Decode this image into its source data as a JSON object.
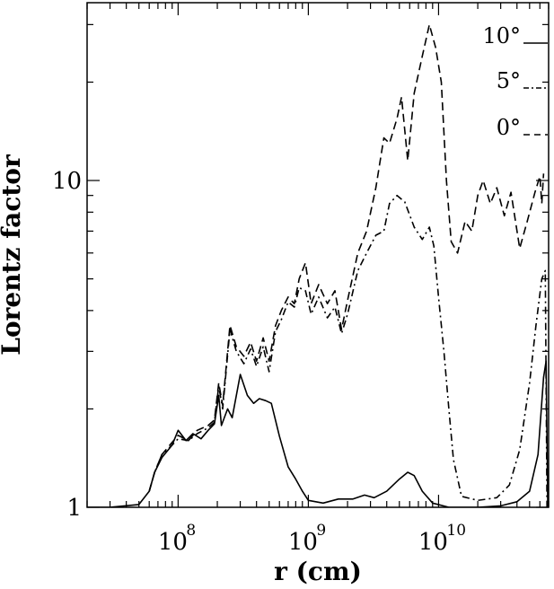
{
  "chart_data": {
    "type": "line",
    "title": "",
    "xlabel": "r (cm)",
    "ylabel": "Lorentz factor",
    "x_scale": "log",
    "y_scale": "log",
    "xlim": [
      20000000,
      70000000000
    ],
    "ylim": [
      1,
      35
    ],
    "x_ticks": [
      {
        "value": 100000000,
        "base": "10",
        "exp": "8"
      },
      {
        "value": 1000000000,
        "base": "10",
        "exp": "9"
      },
      {
        "value": 10000000000,
        "base": "10",
        "exp": "10"
      }
    ],
    "y_ticks": [
      {
        "value": 1,
        "label": "1"
      },
      {
        "value": 10,
        "label": "10"
      }
    ],
    "grid": false,
    "legend_position": "top-right",
    "series": [
      {
        "name": "10°",
        "style": "solid",
        "points": [
          [
            20000000,
            1.0
          ],
          [
            30000000,
            1.0
          ],
          [
            50000000,
            1.02
          ],
          [
            60000000,
            1.12
          ],
          [
            66000000,
            1.28
          ],
          [
            75000000,
            1.42
          ],
          [
            90000000,
            1.55
          ],
          [
            100000000,
            1.72
          ],
          [
            115000000,
            1.6
          ],
          [
            130000000,
            1.68
          ],
          [
            150000000,
            1.62
          ],
          [
            170000000,
            1.72
          ],
          [
            190000000,
            1.8
          ],
          [
            205000000,
            2.2
          ],
          [
            215000000,
            1.78
          ],
          [
            240000000,
            2.0
          ],
          [
            260000000,
            1.88
          ],
          [
            300000000,
            2.55
          ],
          [
            340000000,
            2.2
          ],
          [
            380000000,
            2.08
          ],
          [
            420000000,
            2.15
          ],
          [
            470000000,
            2.12
          ],
          [
            520000000,
            2.08
          ],
          [
            600000000,
            1.65
          ],
          [
            700000000,
            1.33
          ],
          [
            800000000,
            1.22
          ],
          [
            900000000,
            1.12
          ],
          [
            1000000000,
            1.05
          ],
          [
            1300000000,
            1.03
          ],
          [
            1700000000,
            1.06
          ],
          [
            2200000000,
            1.06
          ],
          [
            2700000000,
            1.09
          ],
          [
            3200000000,
            1.07
          ],
          [
            4000000000,
            1.12
          ],
          [
            5000000000,
            1.22
          ],
          [
            5800000000,
            1.28
          ],
          [
            6500000000,
            1.25
          ],
          [
            7500000000,
            1.12
          ],
          [
            9000000000,
            1.03
          ],
          [
            12000000000,
            1.0
          ],
          [
            20000000000,
            1.0
          ],
          [
            30000000000,
            1.01
          ],
          [
            40000000000,
            1.04
          ],
          [
            50000000000,
            1.12
          ],
          [
            58000000000,
            1.45
          ],
          [
            64000000000,
            2.5
          ],
          [
            67000000000,
            2.8
          ],
          [
            69000000000,
            1.0
          ]
        ]
      },
      {
        "name": "5°",
        "style": "dash-dot",
        "points": [
          [
            60000000,
            1.12
          ],
          [
            66000000,
            1.28
          ],
          [
            75000000,
            1.45
          ],
          [
            90000000,
            1.55
          ],
          [
            100000000,
            1.62
          ],
          [
            120000000,
            1.6
          ],
          [
            140000000,
            1.68
          ],
          [
            170000000,
            1.75
          ],
          [
            190000000,
            1.82
          ],
          [
            205000000,
            2.35
          ],
          [
            220000000,
            2.0
          ],
          [
            250000000,
            3.5
          ],
          [
            280000000,
            3.0
          ],
          [
            320000000,
            2.75
          ],
          [
            360000000,
            3.05
          ],
          [
            400000000,
            2.7
          ],
          [
            450000000,
            3.1
          ],
          [
            500000000,
            2.6
          ],
          [
            560000000,
            3.45
          ],
          [
            620000000,
            3.75
          ],
          [
            700000000,
            4.25
          ],
          [
            780000000,
            4.1
          ],
          [
            850000000,
            4.7
          ],
          [
            950000000,
            4.6
          ],
          [
            1050000000,
            3.9
          ],
          [
            1200000000,
            4.4
          ],
          [
            1400000000,
            3.8
          ],
          [
            1600000000,
            4.1
          ],
          [
            1800000000,
            3.4
          ],
          [
            2000000000,
            3.9
          ],
          [
            2400000000,
            5.3
          ],
          [
            2800000000,
            6.0
          ],
          [
            3300000000,
            6.8
          ],
          [
            3800000000,
            7.0
          ],
          [
            4200000000,
            8.5
          ],
          [
            4800000000,
            9.0
          ],
          [
            5500000000,
            8.6
          ],
          [
            6500000000,
            7.2
          ],
          [
            7500000000,
            6.6
          ],
          [
            8500000000,
            7.2
          ],
          [
            9200000000,
            6.3
          ],
          [
            10000000000,
            4.4
          ],
          [
            11000000000,
            3.0
          ],
          [
            12000000000,
            2.0
          ],
          [
            13000000000,
            1.4
          ],
          [
            15000000000,
            1.08
          ],
          [
            20000000000,
            1.05
          ],
          [
            28000000000,
            1.07
          ],
          [
            35000000000,
            1.17
          ],
          [
            42000000000,
            1.5
          ],
          [
            50000000000,
            2.4
          ],
          [
            56000000000,
            3.6
          ],
          [
            62000000000,
            5.0
          ],
          [
            66000000000,
            5.3
          ],
          [
            68000000000,
            1.0
          ]
        ]
      },
      {
        "name": "0°",
        "style": "dashed",
        "points": [
          [
            60000000,
            1.12
          ],
          [
            66000000,
            1.28
          ],
          [
            75000000,
            1.45
          ],
          [
            90000000,
            1.58
          ],
          [
            100000000,
            1.66
          ],
          [
            120000000,
            1.6
          ],
          [
            140000000,
            1.72
          ],
          [
            170000000,
            1.78
          ],
          [
            190000000,
            1.85
          ],
          [
            205000000,
            2.4
          ],
          [
            220000000,
            2.05
          ],
          [
            250000000,
            3.6
          ],
          [
            280000000,
            3.1
          ],
          [
            320000000,
            2.9
          ],
          [
            360000000,
            3.2
          ],
          [
            400000000,
            2.8
          ],
          [
            450000000,
            3.3
          ],
          [
            500000000,
            2.8
          ],
          [
            560000000,
            3.6
          ],
          [
            620000000,
            4.0
          ],
          [
            700000000,
            4.4
          ],
          [
            780000000,
            4.2
          ],
          [
            850000000,
            5.0
          ],
          [
            950000000,
            5.6
          ],
          [
            1050000000,
            4.2
          ],
          [
            1200000000,
            4.8
          ],
          [
            1400000000,
            4.2
          ],
          [
            1600000000,
            4.6
          ],
          [
            1800000000,
            3.5
          ],
          [
            2000000000,
            4.3
          ],
          [
            2400000000,
            6.0
          ],
          [
            2800000000,
            7.0
          ],
          [
            3300000000,
            9.5
          ],
          [
            3800000000,
            13.5
          ],
          [
            4200000000,
            13.0
          ],
          [
            4800000000,
            15.5
          ],
          [
            5200000000,
            18.0
          ],
          [
            5800000000,
            11.5
          ],
          [
            6500000000,
            18.5
          ],
          [
            7500000000,
            24.0
          ],
          [
            8500000000,
            30.0
          ],
          [
            9500000000,
            25.5
          ],
          [
            10500000000,
            20.0
          ],
          [
            11500000000,
            10.0
          ],
          [
            12500000000,
            6.5
          ],
          [
            14000000000,
            6.0
          ],
          [
            16000000000,
            7.5
          ],
          [
            18000000000,
            7.0
          ],
          [
            20000000000,
            9.0
          ],
          [
            22000000000,
            10.0
          ],
          [
            25000000000,
            8.5
          ],
          [
            28000000000,
            9.5
          ],
          [
            32000000000,
            7.8
          ],
          [
            36000000000,
            9.2
          ],
          [
            42000000000,
            6.2
          ],
          [
            48000000000,
            7.5
          ],
          [
            55000000000,
            9.2
          ],
          [
            60000000000,
            10.3
          ],
          [
            62000000000,
            8.5
          ],
          [
            64000000000,
            10.5
          ]
        ]
      }
    ]
  }
}
